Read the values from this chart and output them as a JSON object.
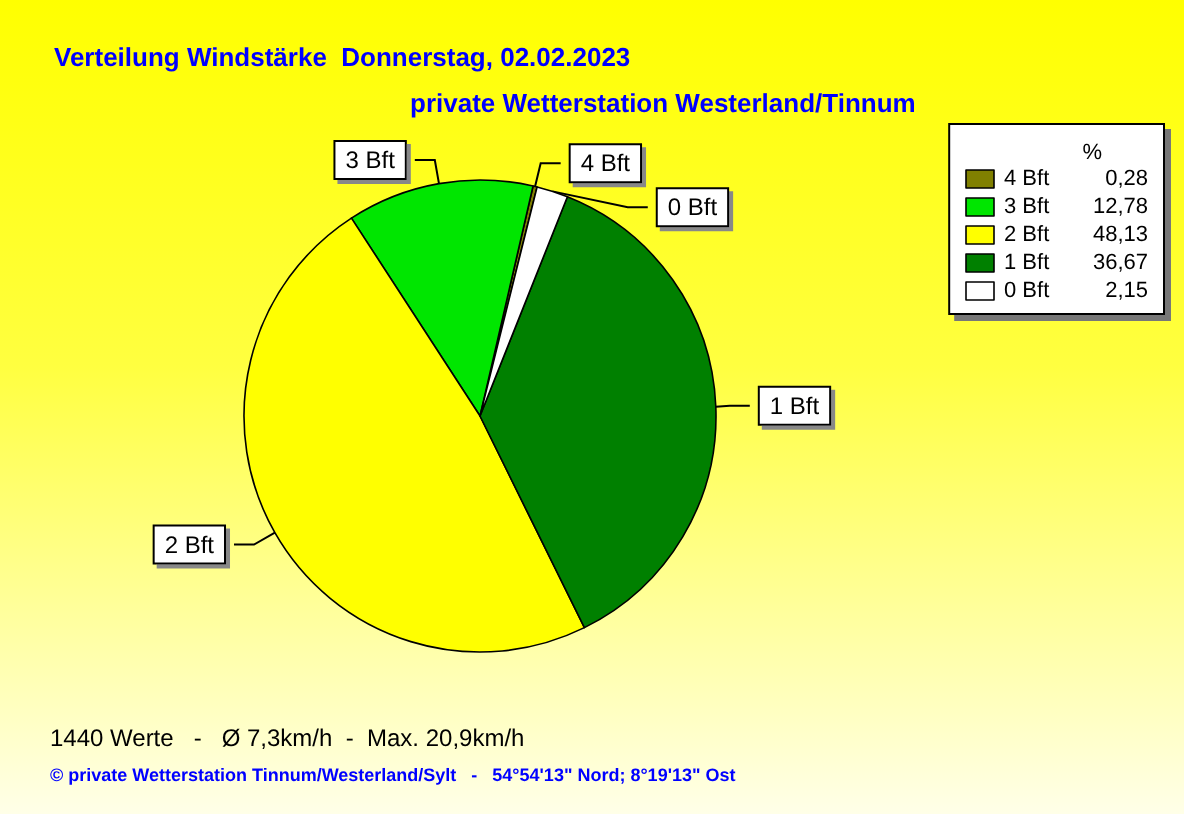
{
  "chart_data": {
    "type": "pie",
    "title": "Verteilung Windstärke  Donnerstag, 02.02.2023",
    "subtitle": "private Wetterstation Westerland/Tinnum",
    "categories": [
      "4 Bft",
      "3 Bft",
      "2 Bft",
      "1 Bft",
      "0 Bft"
    ],
    "values": [
      0.28,
      12.78,
      48.13,
      36.67,
      2.15
    ],
    "colors": [
      "#808000",
      "#00e600",
      "#ffff00",
      "#008000",
      "#ffffff"
    ],
    "value_labels": [
      "0,28",
      "12,78",
      "48,13",
      "36,67",
      "2,15"
    ],
    "legend": "top right",
    "legend_title": "%",
    "annotations": [
      "1440 Werte   -   Ø 7,3km/h  -  Max. 20,9km/h",
      "© private Wetterstation Tinnum/Westerland/Sylt   -   54°54'13\" Nord; 8°19'13\" Ost"
    ]
  }
}
